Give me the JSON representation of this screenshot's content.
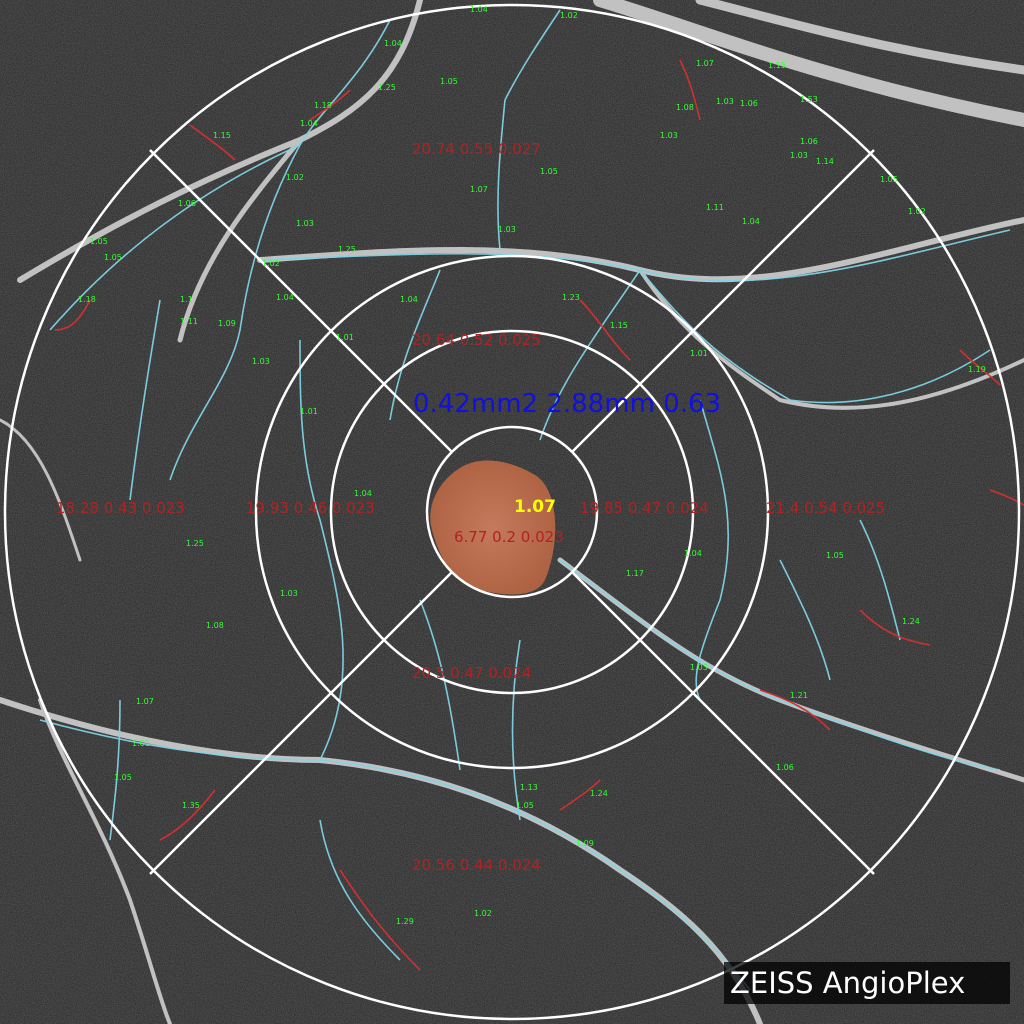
{
  "image": {
    "title": "OCT angiography superficial plexus analysis",
    "brand": "ZEISS AngioPlex",
    "colors": {
      "grid": "#ffffff",
      "sector_text": "#b22222",
      "faz_metrics_text": "#1010e0",
      "faz_ratio_text": "#ffff00",
      "vessel_trace": "#7fd3e6",
      "tortuous_vessel": "#d03030",
      "tortuosity_text": "#33ff33",
      "faz_fill": "#c8724e"
    }
  },
  "faz": {
    "metrics": "0.42mm2  2.88mm  0.63",
    "ratio": "1.07"
  },
  "sectors": {
    "center": "6.77 0.2 0.023",
    "inner_superior": "20.64 0.52 0.025",
    "inner_nasal_left": "19.93 0.46 0.023",
    "inner_temporal_right": "19.85 0.47 0.024",
    "inner_inferior": "20.5 0.47 0.024",
    "outer_superior": "20.74 0.55 0.027",
    "outer_nasal_left": "18.28 0.43 0.023",
    "outer_temporal_right": "21.4 0.54 0.025",
    "outer_inferior": "20.56 0.44 0.024"
  },
  "tortuosity_values": [
    "1.04",
    "1.05",
    "1.18",
    "1.15",
    "1.25",
    "1.18",
    "1.04",
    "1.02",
    "1.07",
    "1.03",
    "1.08",
    "1.03",
    "1.15",
    "1.53",
    "1.06",
    "1.14",
    "1.05",
    "1.02",
    "1.04",
    "1.11",
    "1.03",
    "1.06",
    "1.02",
    "1.03",
    "1.05",
    "1.25",
    "1.02",
    "1.04",
    "1.01",
    "1.06",
    "1.04",
    "1.05",
    "1.1",
    "1.11",
    "1.09",
    "1.03",
    "1.15",
    "1.03",
    "1.05",
    "1.07",
    "1.01",
    "1.04",
    "1.19",
    "1.23",
    "1.01",
    "1.04",
    "1.25",
    "1.03",
    "1.08",
    "1.07",
    "1.35",
    "1.01",
    "1.05",
    "1.06",
    "1.13",
    "1.05",
    "1.24",
    "1.09",
    "1.02",
    "1.29",
    "1.17",
    "1.03",
    "1.24",
    "1.21",
    "1.05",
    "1.04"
  ]
}
